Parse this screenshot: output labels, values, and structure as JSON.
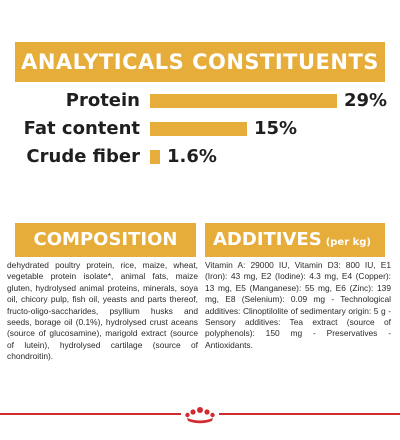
{
  "title": "ANALYTICALS CONSTITUENTS",
  "constituents": [
    {
      "label": "Protein",
      "value": "29%",
      "percent": 29
    },
    {
      "label": "Fat content",
      "value": "15%",
      "percent": 15
    },
    {
      "label": "Crude fiber",
      "value": "1.6%",
      "percent": 1.6
    }
  ],
  "composition": {
    "heading": "COMPOSITION",
    "text": "dehydrated poultry protein, rice, maize, wheat, vegetable protein isolate*, animal fats, maize gluten, hydrolysed animal proteins, minerals, soya oil, chicory pulp, fish oil, yeasts and parts thereof, fructo-oligo-saccharides, psyllium husks and seeds, borage oil (0.1%), hydrolysed crust aceans (source of glucosamine), marigold extract (source of lutein), hydrolysed cartilage (source of chondroitin)."
  },
  "additives": {
    "heading": "ADDITIVES",
    "unit": "(per kg)",
    "text": "Vitamin A: 29000 IU, Vitamin D3: 800 IU, E1 (Iron): 43 mg, E2 (Iodine): 4.3 mg, E4 (Copper): 13 mg, E5 (Manganese): 55 mg, E6 (Zinc): 139 mg, E8 (Selenium): 0.09 mg - Technological additives: Clinoptilolite of sedimentary origin: 5 g - Sensory additives: Tea extract (source of polyphenols): 150 mg - Preservatives - Antioxidants."
  },
  "colors": {
    "accent": "#e6ad3a",
    "brand_red": "#d12a2f",
    "text": "#1f1f1f"
  },
  "logo_icon": "royal-canin-crown-logo"
}
